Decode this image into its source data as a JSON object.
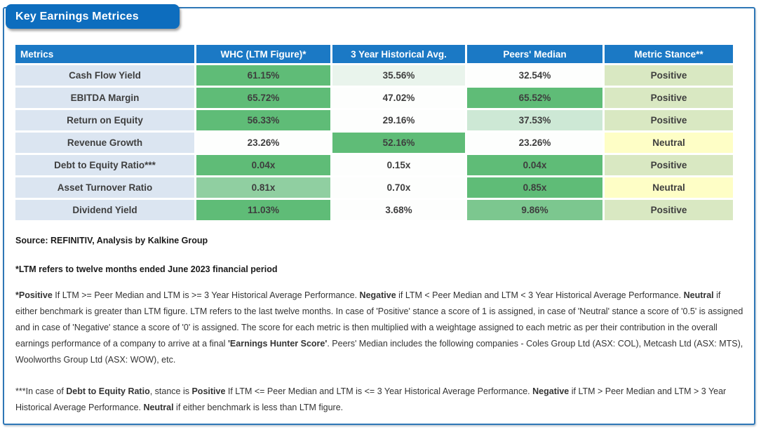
{
  "title": "Key Earnings Metrices",
  "colors": {
    "banner": "#0D6DBE",
    "border": "#2E77B6",
    "header_bg": "#1B79C5",
    "header_text": "#FFFFFF",
    "metric_bg": "#DBE5F1",
    "metric_text": "#1E7CC8",
    "value_text": "#3E3E3E",
    "fills": {
      "white": "#FDFEFD",
      "green_strong": "#5FBC77",
      "green_med": "#7CC78F",
      "green_light": "#90CFA1",
      "green_pale": "#CDE8D5",
      "green_faint": "#E9F4EC",
      "positive": "#D9E8C2",
      "neutral": "#FEFEC6"
    }
  },
  "table": {
    "headers": [
      "Metrics",
      "WHC (LTM Figure)*",
      "3 Year Historical Avg.",
      "Peers' Median",
      "Metric Stance**"
    ],
    "rows": [
      {
        "metric": "Cash Flow Yield",
        "values": [
          {
            "v": "61.15%",
            "fill": "green_strong"
          },
          {
            "v": "35.56%",
            "fill": "green_faint"
          },
          {
            "v": "32.54%",
            "fill": "white"
          }
        ],
        "stance": {
          "v": "Positive",
          "fill": "positive"
        }
      },
      {
        "metric": "EBITDA Margin",
        "values": [
          {
            "v": "65.72%",
            "fill": "green_strong"
          },
          {
            "v": "47.02%",
            "fill": "white"
          },
          {
            "v": "65.52%",
            "fill": "green_strong"
          }
        ],
        "stance": {
          "v": "Positive",
          "fill": "positive"
        }
      },
      {
        "metric": "Return on Equity",
        "values": [
          {
            "v": "56.33%",
            "fill": "green_strong"
          },
          {
            "v": "29.16%",
            "fill": "white"
          },
          {
            "v": "37.53%",
            "fill": "green_pale"
          }
        ],
        "stance": {
          "v": "Positive",
          "fill": "positive"
        }
      },
      {
        "metric": "Revenue Growth",
        "values": [
          {
            "v": "23.26%",
            "fill": "white"
          },
          {
            "v": "52.16%",
            "fill": "green_strong"
          },
          {
            "v": "23.26%",
            "fill": "white"
          }
        ],
        "stance": {
          "v": "Neutral",
          "fill": "neutral"
        }
      },
      {
        "metric": "Debt to Equity Ratio***",
        "values": [
          {
            "v": "0.04x",
            "fill": "green_strong"
          },
          {
            "v": "0.15x",
            "fill": "white"
          },
          {
            "v": "0.04x",
            "fill": "green_strong"
          }
        ],
        "stance": {
          "v": "Positive",
          "fill": "positive"
        }
      },
      {
        "metric": "Asset Turnover Ratio",
        "values": [
          {
            "v": "0.81x",
            "fill": "green_light"
          },
          {
            "v": "0.70x",
            "fill": "white"
          },
          {
            "v": "0.85x",
            "fill": "green_strong"
          }
        ],
        "stance": {
          "v": "Neutral",
          "fill": "neutral"
        }
      },
      {
        "metric": "Dividend Yield",
        "values": [
          {
            "v": "11.03%",
            "fill": "green_strong"
          },
          {
            "v": "3.68%",
            "fill": "white"
          },
          {
            "v": "9.86%",
            "fill": "green_med"
          }
        ],
        "stance": {
          "v": "Positive",
          "fill": "positive"
        }
      }
    ]
  },
  "notes": {
    "source": [
      {
        "t": "Source: REFINITIV, Analysis by Kalkine Group",
        "b": true
      }
    ],
    "ltm": [
      {
        "t": "*LTM refers to twelve months ended June 2023 financial period",
        "b": true
      }
    ],
    "stance_note": [
      {
        "t": "*Positive",
        "b": true
      },
      {
        "t": " If LTM >= Peer Median and LTM is >= 3 Year Historical Average Performance. ",
        "b": false
      },
      {
        "t": "Negative",
        "b": true
      },
      {
        "t": " if LTM < Peer Median and LTM < 3 Year Historical Average Performance. ",
        "b": false
      },
      {
        "t": "Neutral",
        "b": true
      },
      {
        "t": " if either benchmark is greater than LTM figure. LTM refers to the last twelve months. In case of 'Positive' stance a score of 1 is assigned, in case of 'Neutral' stance a score of '0.5' is assigned and in case of 'Negative' stance a score of '0' is assigned. The score for each metric is then multiplied with a weightage assigned to each metric as per their contribution in the overall earnings performance of a company to arrive at a final ",
        "b": false
      },
      {
        "t": "'Earnings Hunter Score'",
        "b": true
      },
      {
        "t": ". Peers' Median includes the following companies - Coles Group Ltd (ASX: COL), Metcash Ltd (ASX: MTS), Woolworths Group Ltd (ASX: WOW), etc.",
        "b": false
      }
    ],
    "debt_note": [
      {
        "t": "***In case of ",
        "b": false
      },
      {
        "t": "Debt to Equity Ratio",
        "b": true
      },
      {
        "t": ", stance is ",
        "b": false
      },
      {
        "t": "Positive",
        "b": true
      },
      {
        "t": " If LTM <= Peer Median and LTM is <= 3 Year Historical Average Performance. ",
        "b": false
      },
      {
        "t": "Negative",
        "b": true
      },
      {
        "t": " if LTM > Peer Median and LTM > 3 Year Historical Average Performance. ",
        "b": false
      },
      {
        "t": "Neutral",
        "b": true
      },
      {
        "t": " if either benchmark is less than LTM figure.",
        "b": false
      }
    ]
  }
}
